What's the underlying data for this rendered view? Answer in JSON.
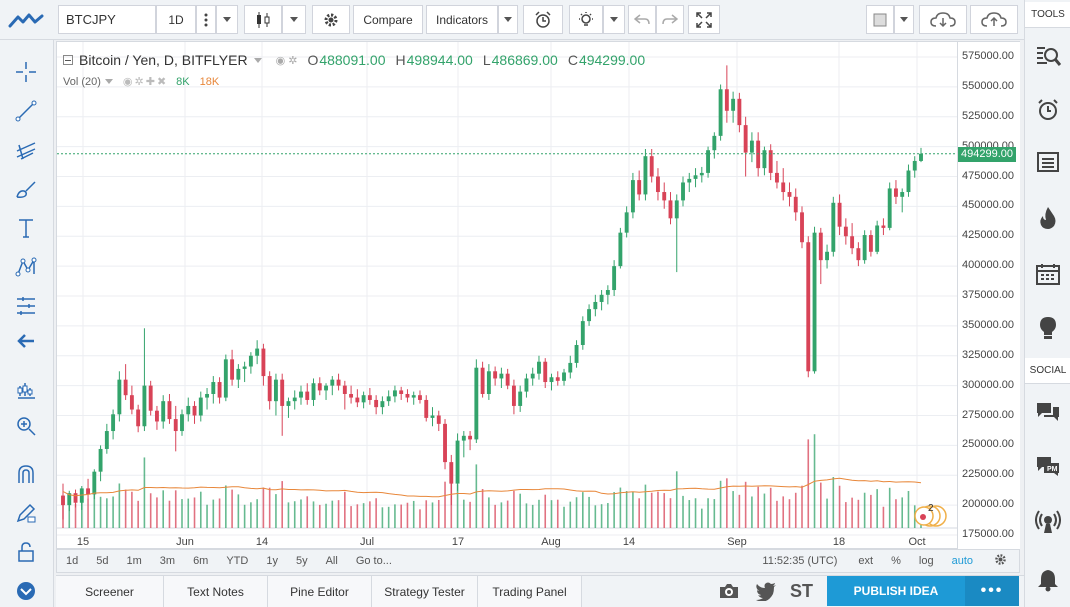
{
  "toolbar": {
    "symbol": "BTCJPY",
    "interval": "1D",
    "compare_label": "Compare",
    "indicators_label": "Indicators"
  },
  "legend": {
    "title": "Bitcoin / Yen, D, BITFLYER",
    "open_key": "O",
    "open": "488091.00",
    "high_key": "H",
    "high": "498944.00",
    "low_key": "L",
    "low": "486869.00",
    "close_key": "C",
    "close": "494299.00",
    "volume_label": "Vol (20)",
    "volume_value": "8K",
    "volume_ma": "18K"
  },
  "badge_count": "2",
  "price_axis": {
    "labels": [
      "575000.00",
      "550000.00",
      "525000.00",
      "500000.00",
      "475000.00",
      "450000.00",
      "425000.00",
      "400000.00",
      "375000.00",
      "350000.00",
      "325000.00",
      "300000.00",
      "275000.00",
      "250000.00",
      "225000.00",
      "200000.00",
      "175000.00"
    ],
    "current": "494299.00"
  },
  "time_axis": [
    "15",
    "Jun",
    "14",
    "Jul",
    "17",
    "Aug",
    "14",
    "Sep",
    "18",
    "Oct"
  ],
  "range_bar": {
    "ranges": [
      "1d",
      "5d",
      "1m",
      "3m",
      "6m",
      "YTD",
      "1y",
      "5y",
      "All"
    ],
    "goto": "Go to...",
    "clock": "11:52:35 (UTC)",
    "ext": "ext",
    "percent": "%",
    "log": "log",
    "auto": "auto"
  },
  "bottom_tabs": [
    "Screener",
    "Text Notes",
    "Pine Editor",
    "Strategy Tester",
    "Trading Panel"
  ],
  "publish_label": "PUBLISH IDEA",
  "st_label": "ST",
  "right_bar": {
    "tools_label": "TOOLS",
    "social_label": "SOCIAL"
  },
  "colors": {
    "up": "#33a36b",
    "down": "#d84357",
    "volume_ma": "#e8873a",
    "accent": "#1e9ad6"
  },
  "chart_data": {
    "type": "candlestick",
    "title": "Bitcoin / Yen, D, BITFLYER",
    "ylim": [
      160000,
      585000
    ],
    "time_labels": [
      "15",
      "Jun",
      "14",
      "Jul",
      "17",
      "Aug",
      "14",
      "Sep",
      "18",
      "Oct"
    ],
    "candles_ohlc": [
      [
        208000,
        218000,
        188000,
        200000
      ],
      [
        200000,
        212000,
        195000,
        210000
      ],
      [
        210000,
        213000,
        198000,
        202000
      ],
      [
        202000,
        216000,
        196000,
        214000
      ],
      [
        214000,
        222000,
        205000,
        209000
      ],
      [
        209000,
        230000,
        205000,
        228000
      ],
      [
        228000,
        250000,
        220000,
        247000
      ],
      [
        247000,
        268000,
        243000,
        262000
      ],
      [
        262000,
        280000,
        255000,
        276000
      ],
      [
        276000,
        312000,
        270000,
        305000
      ],
      [
        305000,
        318000,
        288000,
        292000
      ],
      [
        292000,
        300000,
        276000,
        280000
      ],
      [
        280000,
        284000,
        261000,
        266000
      ],
      [
        266000,
        348000,
        262000,
        300000
      ],
      [
        300000,
        304000,
        275000,
        279000
      ],
      [
        279000,
        283000,
        263000,
        270000
      ],
      [
        270000,
        292000,
        264000,
        287000
      ],
      [
        287000,
        293000,
        268000,
        272000
      ],
      [
        272000,
        283000,
        245000,
        262000
      ],
      [
        262000,
        280000,
        258000,
        276000
      ],
      [
        276000,
        290000,
        270000,
        283000
      ],
      [
        283000,
        287000,
        268000,
        275000
      ],
      [
        275000,
        295000,
        270000,
        290000
      ],
      [
        290000,
        298000,
        280000,
        293000
      ],
      [
        293000,
        308000,
        285000,
        303000
      ],
      [
        303000,
        307000,
        285000,
        290000
      ],
      [
        290000,
        326000,
        287000,
        322000
      ],
      [
        322000,
        330000,
        300000,
        305000
      ],
      [
        305000,
        318000,
        298000,
        314000
      ],
      [
        314000,
        320000,
        303000,
        316000
      ],
      [
        316000,
        328000,
        310000,
        325000
      ],
      [
        325000,
        338000,
        318000,
        331000
      ],
      [
        331000,
        335000,
        300000,
        308000
      ],
      [
        308000,
        312000,
        280000,
        287000
      ],
      [
        287000,
        310000,
        275000,
        305000
      ],
      [
        305000,
        310000,
        258000,
        283000
      ],
      [
        283000,
        290000,
        273000,
        287000
      ],
      [
        287000,
        296000,
        280000,
        290000
      ],
      [
        290000,
        300000,
        284000,
        295000
      ],
      [
        295000,
        302000,
        284000,
        288000
      ],
      [
        288000,
        306000,
        283000,
        302000
      ],
      [
        302000,
        307000,
        292000,
        296000
      ],
      [
        296000,
        302000,
        288000,
        300000
      ],
      [
        300000,
        308000,
        292000,
        305000
      ],
      [
        305000,
        310000,
        296000,
        300000
      ],
      [
        300000,
        304000,
        280000,
        293000
      ],
      [
        293000,
        300000,
        285000,
        290000
      ],
      [
        290000,
        297000,
        282000,
        286000
      ],
      [
        286000,
        295000,
        281000,
        292000
      ],
      [
        292000,
        298000,
        284000,
        288000
      ],
      [
        288000,
        292000,
        276000,
        282000
      ],
      [
        282000,
        291000,
        276000,
        287000
      ],
      [
        287000,
        296000,
        283000,
        291000
      ],
      [
        291000,
        300000,
        286000,
        296000
      ],
      [
        296000,
        299000,
        288000,
        293000
      ],
      [
        293000,
        297000,
        286000,
        290000
      ],
      [
        290000,
        295000,
        284000,
        292000
      ],
      [
        292000,
        296000,
        285000,
        288000
      ],
      [
        288000,
        292000,
        270000,
        273000
      ],
      [
        273000,
        282000,
        266000,
        275000
      ],
      [
        275000,
        279000,
        262000,
        268000
      ],
      [
        268000,
        272000,
        230000,
        236000
      ],
      [
        236000,
        242000,
        200000,
        218000
      ],
      [
        218000,
        260000,
        212000,
        254000
      ],
      [
        254000,
        262000,
        240000,
        258000
      ],
      [
        258000,
        262000,
        246000,
        255000
      ],
      [
        255000,
        322000,
        252000,
        315000
      ],
      [
        315000,
        320000,
        290000,
        293000
      ],
      [
        293000,
        318000,
        288000,
        312000
      ],
      [
        312000,
        316000,
        300000,
        306000
      ],
      [
        306000,
        315000,
        298000,
        310000
      ],
      [
        310000,
        314000,
        297000,
        300000
      ],
      [
        300000,
        305000,
        276000,
        283000
      ],
      [
        283000,
        300000,
        278000,
        295000
      ],
      [
        295000,
        310000,
        290000,
        306000
      ],
      [
        306000,
        315000,
        300000,
        310000
      ],
      [
        310000,
        325000,
        305000,
        320000
      ],
      [
        320000,
        323000,
        298000,
        303000
      ],
      [
        303000,
        310000,
        296000,
        307000
      ],
      [
        307000,
        312000,
        300000,
        304000
      ],
      [
        304000,
        314000,
        300000,
        311000
      ],
      [
        311000,
        325000,
        306000,
        319000
      ],
      [
        319000,
        338000,
        315000,
        334000
      ],
      [
        334000,
        358000,
        330000,
        354000
      ],
      [
        354000,
        368000,
        350000,
        364000
      ],
      [
        364000,
        376000,
        358000,
        370000
      ],
      [
        370000,
        380000,
        363000,
        376000
      ],
      [
        376000,
        384000,
        368000,
        380000
      ],
      [
        380000,
        405000,
        375000,
        400000
      ],
      [
        400000,
        432000,
        398000,
        428000
      ],
      [
        428000,
        450000,
        424000,
        445000
      ],
      [
        445000,
        478000,
        440000,
        472000
      ],
      [
        472000,
        480000,
        455000,
        460000
      ],
      [
        460000,
        498000,
        455000,
        492000
      ],
      [
        492000,
        498000,
        470000,
        475000
      ],
      [
        475000,
        482000,
        455000,
        462000
      ],
      [
        462000,
        470000,
        448000,
        455000
      ],
      [
        455000,
        462000,
        435000,
        440000
      ],
      [
        440000,
        460000,
        395000,
        455000
      ],
      [
        455000,
        475000,
        450000,
        470000
      ],
      [
        470000,
        478000,
        462000,
        473000
      ],
      [
        473000,
        482000,
        466000,
        476000
      ],
      [
        476000,
        483000,
        470000,
        478000
      ],
      [
        478000,
        500000,
        474000,
        497000
      ],
      [
        497000,
        512000,
        490000,
        509000
      ],
      [
        509000,
        552000,
        505000,
        548000
      ],
      [
        548000,
        568000,
        520000,
        530000
      ],
      [
        530000,
        546000,
        520000,
        540000
      ],
      [
        540000,
        545000,
        512000,
        518000
      ],
      [
        518000,
        525000,
        475000,
        495000
      ],
      [
        495000,
        512000,
        487000,
        505000
      ],
      [
        505000,
        512000,
        475000,
        482000
      ],
      [
        482000,
        500000,
        476000,
        497000
      ],
      [
        497000,
        502000,
        472000,
        478000
      ],
      [
        478000,
        488000,
        465000,
        470000
      ],
      [
        470000,
        482000,
        455000,
        462000
      ],
      [
        462000,
        470000,
        450000,
        458000
      ],
      [
        458000,
        465000,
        438000,
        445000
      ],
      [
        445000,
        450000,
        415000,
        420000
      ],
      [
        420000,
        425000,
        307000,
        312000
      ],
      [
        312000,
        433000,
        310000,
        428000
      ],
      [
        428000,
        432000,
        385000,
        405000
      ],
      [
        405000,
        418000,
        398000,
        412000
      ],
      [
        412000,
        458000,
        408000,
        453000
      ],
      [
        453000,
        460000,
        426000,
        433000
      ],
      [
        433000,
        440000,
        418000,
        425000
      ],
      [
        425000,
        436000,
        410000,
        415000
      ],
      [
        415000,
        420000,
        400000,
        405000
      ],
      [
        405000,
        430000,
        402000,
        426000
      ],
      [
        426000,
        430000,
        408000,
        412000
      ],
      [
        412000,
        438000,
        410000,
        434000
      ],
      [
        434000,
        440000,
        426000,
        432000
      ],
      [
        432000,
        470000,
        430000,
        465000
      ],
      [
        465000,
        472000,
        452000,
        458000
      ],
      [
        458000,
        465000,
        445000,
        462000
      ],
      [
        462000,
        485000,
        458000,
        480000
      ],
      [
        480000,
        492000,
        474000,
        488000
      ],
      [
        488000,
        499000,
        487000,
        494000
      ]
    ]
  }
}
